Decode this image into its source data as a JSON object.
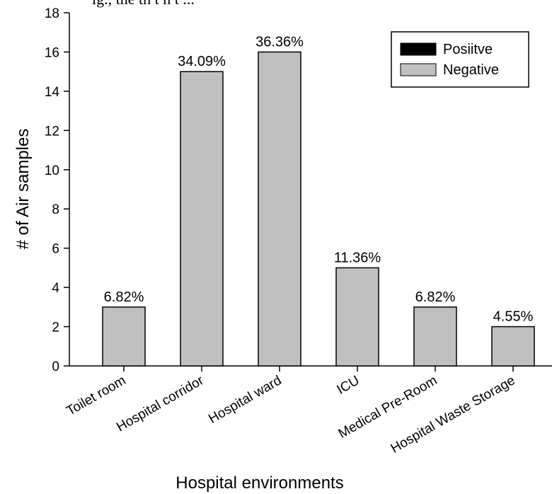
{
  "header_fragment": "ig., the   th   t   h  t ...",
  "chart_data": {
    "type": "bar",
    "categories": [
      "Toilet room",
      "Hospital corridor",
      "Hospital ward",
      "ICU",
      "Medical Pre-Room",
      "Hospital Waste Storage"
    ],
    "series": [
      {
        "name": "Posiitve",
        "color": "#000000",
        "values": [
          0,
          0,
          0,
          0,
          0,
          0
        ]
      },
      {
        "name": "Negative",
        "color": "#c0c0c0",
        "values": [
          3,
          15,
          16,
          5,
          3,
          2
        ]
      }
    ],
    "data_labels": [
      "6.82%",
      "34.09%",
      "36.36%",
      "11.36%",
      "6.82%",
      "4.55%"
    ],
    "xlabel": "Hospital environments",
    "ylabel": "# of Air samples",
    "ylim": [
      0,
      18
    ],
    "yticks": [
      0,
      2,
      4,
      6,
      8,
      10,
      12,
      14,
      16,
      18
    ],
    "grid": false,
    "legend_position": "top-right"
  }
}
